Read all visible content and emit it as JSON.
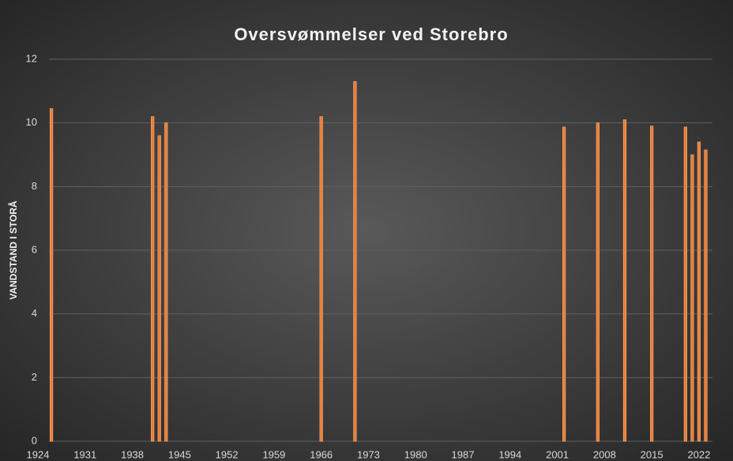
{
  "chart_data": {
    "type": "bar",
    "title": "Oversvømmelser ved Storebro",
    "y_label": "VANDSTAND I STORÅ",
    "x": [
      1926,
      1941,
      1942,
      1943,
      1966,
      1971,
      2002,
      2007,
      2011,
      2015,
      2020,
      2021,
      2022,
      2023
    ],
    "values": [
      10.45,
      10.2,
      9.6,
      10.0,
      10.2,
      11.3,
      9.87,
      10.0,
      10.1,
      9.9,
      9.87,
      9.0,
      9.4,
      9.15
    ],
    "color": "#ED7D31",
    "xlim": [
      1924,
      2024
    ],
    "xticks": [
      1924,
      1931,
      1938,
      1945,
      1952,
      1959,
      1966,
      1973,
      1980,
      1987,
      1994,
      2001,
      2008,
      2015,
      2022
    ],
    "ylim": [
      0,
      12
    ],
    "yticks": [
      0,
      2,
      4,
      6,
      8,
      10,
      12
    ],
    "grid": true
  }
}
